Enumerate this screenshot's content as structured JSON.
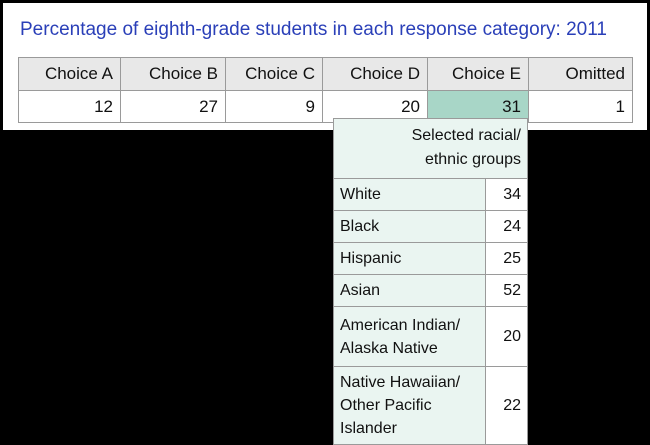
{
  "title": "Percentage of eighth-grade students in each response category: 2011",
  "chart_data": {
    "type": "table",
    "title": "Percentage of eighth-grade students in each response category: 2011",
    "columns": [
      "Choice A",
      "Choice B",
      "Choice C",
      "Choice D",
      "Choice E",
      "Omitted"
    ],
    "values": [
      "12",
      "27",
      "9",
      "20",
      "31",
      "1"
    ],
    "highlighted_column": "Choice E",
    "subtable": {
      "header": "Selected racial/ ethnic groups",
      "header_lines": [
        "Selected racial/",
        "ethnic groups"
      ],
      "rows": [
        {
          "label": "White",
          "label_lines": [
            "White"
          ],
          "value": "34"
        },
        {
          "label": "Black",
          "label_lines": [
            "Black"
          ],
          "value": "24"
        },
        {
          "label": "Hispanic",
          "label_lines": [
            "Hispanic"
          ],
          "value": "25"
        },
        {
          "label": "Asian",
          "label_lines": [
            "Asian"
          ],
          "value": "52"
        },
        {
          "label": "American Indian/ Alaska Native",
          "label_lines": [
            "American Indian/",
            "Alaska Native"
          ],
          "value": "20"
        },
        {
          "label": "Native Hawaiian/ Other Pacific Islander",
          "label_lines": [
            "Native Hawaiian/",
            "Other Pacific Islander"
          ],
          "value": "22"
        }
      ]
    },
    "colors": {
      "title": "#2a3fb8",
      "header_fill": "#e8e8e8",
      "highlight_fill": "#a8d6c7",
      "subtable_fill": "#eaf5f1",
      "background": "#000000"
    }
  }
}
